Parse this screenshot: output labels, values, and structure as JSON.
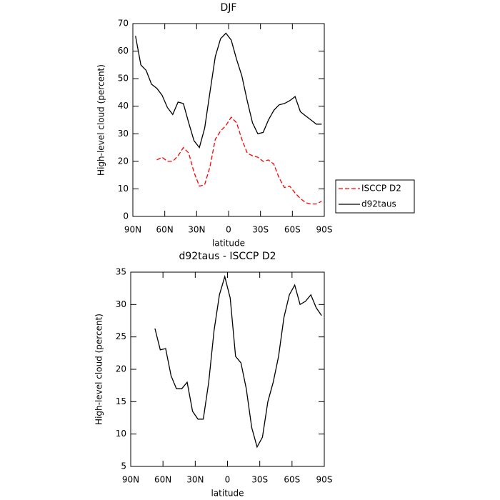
{
  "chart_data": [
    {
      "type": "line",
      "title": "DJF",
      "x_label": "latitude",
      "y_label": "High-level cloud (percent)",
      "x": [
        87.5,
        82.5,
        77.5,
        72.5,
        67.5,
        62.5,
        57.5,
        52.5,
        47.5,
        42.5,
        37.5,
        32.5,
        27.5,
        22.5,
        17.5,
        12.5,
        7.5,
        2.5,
        -2.5,
        -7.5,
        -12.5,
        -17.5,
        -22.5,
        -27.5,
        -32.5,
        -37.5,
        -42.5,
        -47.5,
        -52.5,
        -57.5,
        -62.5,
        -67.5,
        -72.5,
        -77.5,
        -82.5,
        -87.5
      ],
      "series": [
        {
          "name": "ISCCP D2",
          "color": "#ff0000",
          "style": "dashed",
          "values": [
            null,
            null,
            null,
            null,
            20.5,
            21.5,
            20,
            20,
            22,
            25,
            23,
            16,
            11,
            11.5,
            18,
            28,
            31,
            33,
            36,
            34,
            28,
            23,
            22,
            21.5,
            20,
            20.5,
            19,
            14,
            10.5,
            11,
            8.5,
            6.5,
            5,
            4.5,
            4.5,
            5.5
          ]
        },
        {
          "name": "d92taus",
          "color": "#000000",
          "style": "solid",
          "values": [
            65.5,
            55,
            53,
            48,
            46.5,
            44,
            39.5,
            37,
            41.5,
            41,
            34,
            27.5,
            25,
            32,
            45,
            58,
            64.5,
            66.5,
            64,
            57,
            51,
            42,
            34,
            30,
            30.5,
            35,
            38.5,
            40.5,
            41,
            42,
            43.5,
            38,
            36.5,
            35,
            33.5,
            33.5
          ]
        }
      ],
      "xlim": [
        90,
        -90
      ],
      "xticks": [
        {
          "value": 90,
          "label": "90N"
        },
        {
          "value": 60,
          "label": "60N"
        },
        {
          "value": 30,
          "label": "30N"
        },
        0,
        {
          "value": -30,
          "label": "30S"
        },
        {
          "value": -60,
          "label": "60S"
        },
        {
          "value": -90,
          "label": "90S"
        }
      ],
      "ylim": [
        0,
        70
      ],
      "yticks": [
        0,
        10,
        20,
        30,
        40,
        50,
        60,
        70
      ],
      "legend": "right"
    },
    {
      "type": "line",
      "title": "d92taus - ISCCP D2",
      "x_label": "latitude",
      "y_label": "High-level cloud (percent)",
      "x": [
        87.5,
        82.5,
        77.5,
        72.5,
        67.5,
        62.5,
        57.5,
        52.5,
        47.5,
        42.5,
        37.5,
        32.5,
        27.5,
        22.5,
        17.5,
        12.5,
        7.5,
        2.5,
        -2.5,
        -7.5,
        -12.5,
        -17.5,
        -22.5,
        -27.5,
        -32.5,
        -37.5,
        -42.5,
        -47.5,
        -52.5,
        -57.5,
        -62.5,
        -67.5,
        -72.5,
        -77.5,
        -82.5,
        -87.5
      ],
      "series": [
        {
          "color": "#000000",
          "style": "solid",
          "values": [
            null,
            null,
            null,
            null,
            26.3,
            23,
            23.2,
            19,
            17,
            17,
            18,
            13.5,
            12.3,
            12.3,
            18,
            26,
            31.5,
            34.3,
            31,
            22,
            21,
            17,
            11,
            8,
            9.5,
            15,
            18,
            22,
            28,
            31.5,
            33,
            30,
            30.5,
            31.5,
            29.5,
            28.3
          ]
        }
      ],
      "xlim": [
        90,
        -90
      ],
      "xticks": [
        {
          "value": 90,
          "label": "90N"
        },
        {
          "value": 60,
          "label": "60N"
        },
        {
          "value": 30,
          "label": "30N"
        },
        0,
        {
          "value": -30,
          "label": "30S"
        },
        {
          "value": -60,
          "label": "60S"
        },
        {
          "value": -90,
          "label": "90S"
        }
      ],
      "ylim": [
        5,
        35
      ],
      "yticks": [
        5,
        10,
        15,
        20,
        25,
        30,
        35
      ]
    }
  ]
}
